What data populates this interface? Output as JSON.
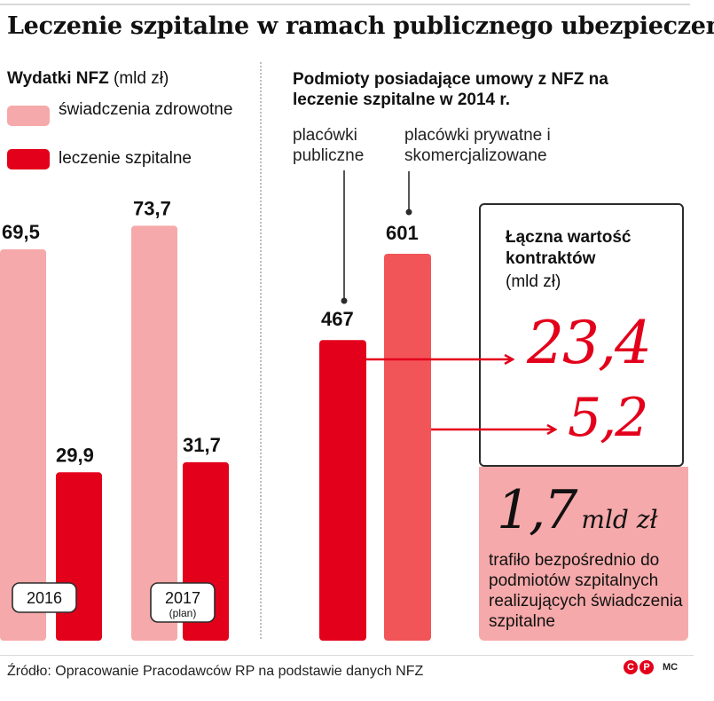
{
  "title": "Leczenie szpitalne w ramach publicznego ubezpieczenia",
  "left": {
    "subtitle_bold": "Wydatki NFZ",
    "subtitle_rest": " (mld zł)",
    "legend": [
      {
        "label": "świadczenia zdrowotne",
        "color": "#f6a9aa"
      },
      {
        "label": "leczenie szpitalne",
        "color": "#e3001b"
      }
    ]
  },
  "right": {
    "subtitle": "Podmioty posiadające umowy z NFZ na leczenie szpitalne w 2014 r.",
    "cat_public": "placówki publiczne",
    "cat_private": "placówki prywatne i skomercjalizowane",
    "box_title": "Łączna wartość kontraktów",
    "box_unit": "(mld zł)",
    "highlight_value": "1,7",
    "highlight_unit": "mld zł",
    "highlight_text": "trafiło bezpośrednio do podmiotów szpitalnych realizujących świadczenia szpitalne"
  },
  "chart_data": [
    {
      "type": "bar",
      "title": "Wydatki NFZ (mld zł)",
      "categories": [
        "2016",
        "2017"
      ],
      "category_notes": [
        "",
        "(plan)"
      ],
      "series": [
        {
          "name": "świadczenia zdrowotne",
          "values": [
            69.5,
            73.7
          ],
          "labels": [
            "69,5",
            "73,7"
          ],
          "color": "#f6a9aa"
        },
        {
          "name": "leczenie szpitalne",
          "values": [
            29.9,
            31.7
          ],
          "labels": [
            "29,9",
            "31,7"
          ],
          "color": "#e3001b"
        }
      ],
      "ylim": [
        0,
        80
      ]
    },
    {
      "type": "bar",
      "title": "Podmioty posiadające umowy z NFZ na leczenie szpitalne w 2014 r.",
      "categories": [
        "placówki publiczne",
        "placówki prywatne i skomercjalizowane"
      ],
      "values": [
        467,
        601
      ],
      "labels": [
        "467",
        "601"
      ],
      "colors": [
        "#e3001b",
        "#f25558"
      ],
      "contract_values": [
        23.4,
        5.2
      ],
      "contract_labels": [
        "23,4",
        "5,2"
      ],
      "ylim": [
        0,
        650
      ]
    }
  ],
  "footer": {
    "source": "Źródło: Opracowanie Pracodawców RP na podstawie danych NFZ",
    "logo_letters": [
      "C",
      "P"
    ],
    "logo_text": "MC"
  }
}
